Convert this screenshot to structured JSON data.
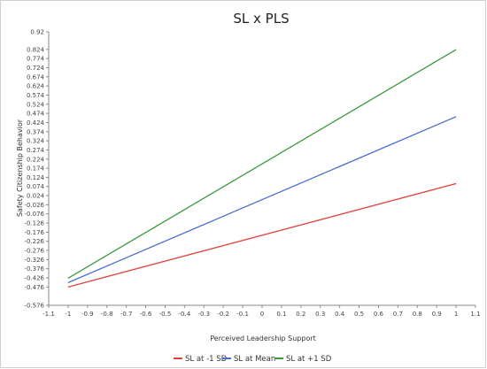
{
  "chart_data": {
    "type": "line",
    "title": "SL x PLS",
    "xlabel": "Perceived Leadership Support",
    "ylabel": "Safety Citizenship Behavior",
    "xlim": [
      -1.1,
      1.1
    ],
    "ylim": [
      -0.576,
      0.92
    ],
    "x_ticks": [
      "-1.1",
      "-1",
      "-0.9",
      "-0.8",
      "-0.7",
      "-0.6",
      "-0.5",
      "-0.4",
      "-0.3",
      "-0.2",
      "-0.1",
      "0",
      "0.1",
      "0.2",
      "0.3",
      "0.4",
      "0.5",
      "0.6",
      "0.7",
      "0.8",
      "0.9",
      "1",
      "1.1"
    ],
    "y_ticks": [
      "-0.576",
      "-0.476",
      "-0.426",
      "-0.376",
      "-0.326",
      "-0.276",
      "-0.226",
      "-0.176",
      "-0.126",
      "-0.076",
      "-0.026",
      "0.024",
      "0.074",
      "0.124",
      "0.174",
      "0.224",
      "0.274",
      "0.324",
      "0.374",
      "0.424",
      "0.474",
      "0.524",
      "0.574",
      "0.624",
      "0.674",
      "0.724",
      "0.774",
      "0.824",
      "0.92"
    ],
    "grid": false,
    "legend_position": "bottom",
    "series": [
      {
        "name": "SL at -1 SD",
        "color": "#e0413b",
        "x": [
          -1,
          1
        ],
        "y": [
          -0.476,
          0.09
        ]
      },
      {
        "name": "SL at Mean",
        "color": "#4a6fd0",
        "x": [
          -1,
          1
        ],
        "y": [
          -0.452,
          0.456
        ]
      },
      {
        "name": "SL at +1 SD",
        "color": "#3a9a3a",
        "x": [
          -1,
          1
        ],
        "y": [
          -0.428,
          0.823
        ]
      }
    ]
  }
}
